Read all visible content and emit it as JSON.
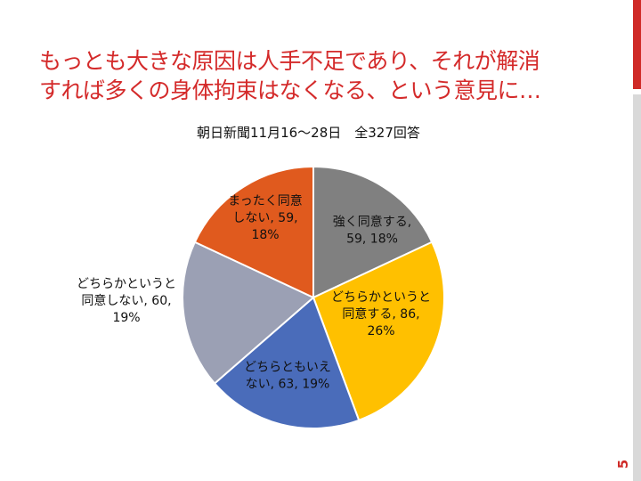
{
  "title": {
    "line1": "もっとも大きな原因は人手不足であり、それが解消",
    "line2": "すれば多くの身体拘束はなくなる、という意見に…"
  },
  "subtitle": "朝日新聞11月16〜28日　全327回答",
  "page_number": "5",
  "chart_data": {
    "type": "pie",
    "total": 327,
    "slices": [
      {
        "name": "強く同意する",
        "value": 59,
        "percent": "18%",
        "color": "#808080",
        "label_lines": [
          "強く同意する,",
          "59, 18%"
        ]
      },
      {
        "name": "どちらかというと同意する",
        "value": 86,
        "percent": "26%",
        "color": "#ffc000",
        "label_lines": [
          "どちらかというと",
          "同意する, 86,",
          "26%"
        ]
      },
      {
        "name": "どちらともいえない",
        "value": 63,
        "percent": "19%",
        "color": "#4a6cba",
        "label_lines": [
          "どちらともいえ",
          "ない, 63, 19%"
        ]
      },
      {
        "name": "どちらかというと同意しない",
        "value": 60,
        "percent": "19%",
        "color": "#9ba0b4",
        "label_lines": [
          "どちらかというと",
          "同意しない, 60,",
          "19%"
        ]
      },
      {
        "name": "まったく同意しない",
        "value": 59,
        "percent": "18%",
        "color": "#e05a1e",
        "label_lines": [
          "まったく同意",
          "しない, 59,",
          "18%"
        ]
      }
    ]
  }
}
